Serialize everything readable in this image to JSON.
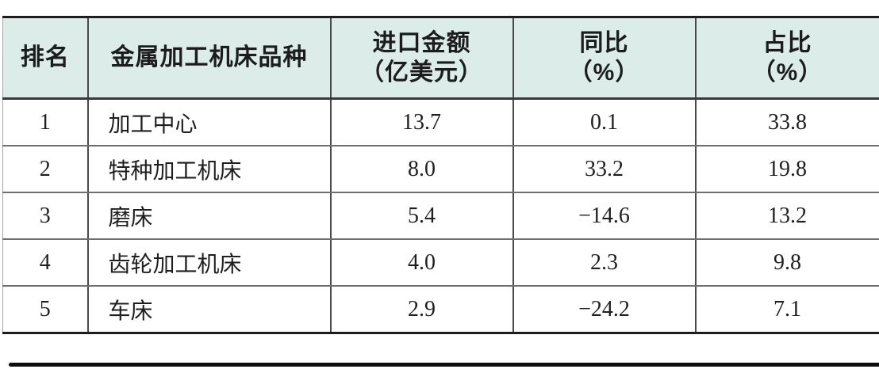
{
  "chart_data": {
    "type": "table",
    "columns": [
      "排名",
      "金属加工机床品种",
      "进口金额（亿美元）",
      "同比（%）",
      "占比（%）"
    ],
    "rows": [
      [
        "1",
        "加工中心",
        "13.7",
        "0.1",
        "33.8"
      ],
      [
        "2",
        "特种加工机床",
        "8.0",
        "33.2",
        "19.8"
      ],
      [
        "3",
        "磨床",
        "5.4",
        "−14.6",
        "13.2"
      ],
      [
        "4",
        "齿轮加工机床",
        "4.0",
        "2.3",
        "9.8"
      ],
      [
        "5",
        "车床",
        "2.9",
        "−24.2",
        "7.1"
      ]
    ]
  },
  "table": {
    "header": {
      "rank": "排名",
      "category": "金属加工机床品种",
      "amount_line1": "进口金额",
      "amount_line2": "（亿美元）",
      "yoy_line1": "同比",
      "yoy_line2": "（%）",
      "share_line1": "占比",
      "share_line2": "（%）"
    },
    "rows": [
      {
        "rank": "1",
        "category": "加工中心",
        "amount": "13.7",
        "yoy": "0.1",
        "share": "33.8"
      },
      {
        "rank": "2",
        "category": "特种加工机床",
        "amount": "8.0",
        "yoy": "33.2",
        "share": "19.8"
      },
      {
        "rank": "3",
        "category": "磨床",
        "amount": "5.4",
        "yoy": "−14.6",
        "share": "13.2"
      },
      {
        "rank": "4",
        "category": "齿轮加工机床",
        "amount": "4.0",
        "yoy": "2.3",
        "share": "9.8"
      },
      {
        "rank": "5",
        "category": "车床",
        "amount": "2.9",
        "yoy": "−24.2",
        "share": "7.1"
      }
    ]
  },
  "colors": {
    "header_bg": "#dcede9",
    "border_dark": "#1d1d1d",
    "grid_gray": "#6e6e6e",
    "text": "#1a1a1a"
  }
}
